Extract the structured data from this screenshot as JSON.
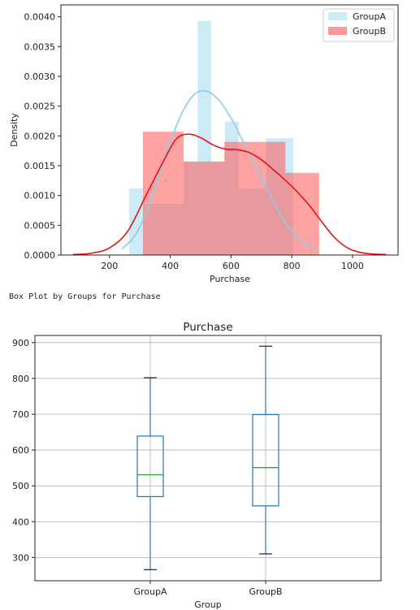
{
  "caption": "Box Plot by Groups for Purchase",
  "chart_data": [
    {
      "type": "histogram",
      "title": "",
      "xlabel": "Purchase",
      "ylabel": "Density",
      "xlim": [
        40,
        1150
      ],
      "ylim": [
        0,
        0.0042
      ],
      "xticks": [
        200,
        400,
        600,
        800,
        1000
      ],
      "yticks": [
        "0.0000",
        "0.0005",
        "0.0010",
        "0.0015",
        "0.0020",
        "0.0025",
        "0.0030",
        "0.0035",
        "0.0040"
      ],
      "legend_position": "top-right",
      "series": [
        {
          "name": "GroupA",
          "color": "#87ceeb",
          "kde_color": "#87ceeb",
          "bins": [
            {
              "x0": 265,
              "x1": 310,
              "density": 0.00112
            },
            {
              "x0": 310,
              "x1": 355,
              "density": 0.00086
            },
            {
              "x0": 355,
              "x1": 400,
              "density": 0.00086
            },
            {
              "x0": 400,
              "x1": 445,
              "density": 0.00086
            },
            {
              "x0": 445,
              "x1": 490,
              "density": 0.00157
            },
            {
              "x0": 490,
              "x1": 535,
              "density": 0.00393
            },
            {
              "x0": 535,
              "x1": 580,
              "density": 0.00157
            },
            {
              "x0": 580,
              "x1": 625,
              "density": 0.00224
            },
            {
              "x0": 625,
              "x1": 670,
              "density": 0.00112
            },
            {
              "x0": 670,
              "x1": 715,
              "density": 0.00112
            },
            {
              "x0": 715,
              "x1": 760,
              "density": 0.00196
            },
            {
              "x0": 760,
              "x1": 805,
              "density": 0.00196
            }
          ],
          "kde": {
            "x": [
              240,
              280,
              320,
              360,
              400,
              440,
              480,
              520,
              560,
              600,
              640,
              680,
              720,
              760,
              800,
              840,
              880
            ],
            "y": [
              0.0001,
              0.0003,
              0.0007,
              0.0013,
              0.0019,
              0.0024,
              0.0027,
              0.00275,
              0.0026,
              0.0023,
              0.0019,
              0.0015,
              0.0011,
              0.0007,
              0.0004,
              0.0002,
              0.0001
            ]
          }
        },
        {
          "name": "GroupB",
          "color": "#ff5555",
          "kde_color": "#e81010",
          "bins": [
            {
              "x0": 310,
              "x1": 377,
              "density": 0.00207
            },
            {
              "x0": 377,
              "x1": 444,
              "density": 0.00207
            },
            {
              "x0": 444,
              "x1": 511,
              "density": 0.00157
            },
            {
              "x0": 511,
              "x1": 578,
              "density": 0.00157
            },
            {
              "x0": 578,
              "x1": 645,
              "density": 0.0019
            },
            {
              "x0": 645,
              "x1": 712,
              "density": 0.0019
            },
            {
              "x0": 712,
              "x1": 779,
              "density": 0.0019
            },
            {
              "x0": 779,
              "x1": 846,
              "density": 0.00138
            },
            {
              "x0": 846,
              "x1": 890,
              "density": 0.00138
            }
          ],
          "kde": {
            "x": [
              80,
              140,
              200,
              260,
              320,
              380,
              420,
              460,
              500,
              540,
              580,
              620,
              660,
              700,
              740,
              780,
              820,
              860,
              900,
              940,
              980,
              1020,
              1060,
              1110
            ],
            "y": [
              1e-05,
              3e-05,
              0.00012,
              0.0004,
              0.001,
              0.0016,
              0.00195,
              0.00203,
              0.00197,
              0.00185,
              0.00178,
              0.00177,
              0.00172,
              0.0016,
              0.00143,
              0.00125,
              0.00105,
              0.00082,
              0.00055,
              0.0003,
              0.00013,
              5e-05,
              2e-05,
              1e-05
            ]
          }
        }
      ]
    },
    {
      "type": "box",
      "title": "Purchase",
      "xlabel": "Group",
      "ylabel": "",
      "ylim": [
        235,
        920
      ],
      "yticks": [
        300,
        400,
        500,
        600,
        700,
        800,
        900
      ],
      "grid": true,
      "categories": [
        "GroupA",
        "GroupB"
      ],
      "boxes": [
        {
          "name": "GroupA",
          "min": 266,
          "q1": 470,
          "median": 531,
          "q3": 639,
          "max": 802
        },
        {
          "name": "GroupB",
          "min": 310,
          "q1": 444,
          "median": 551,
          "q3": 699,
          "max": 890
        }
      ],
      "colors": {
        "box": "#1f77b4",
        "median": "#2ca02c",
        "grid": "#b0b0b0"
      }
    }
  ]
}
